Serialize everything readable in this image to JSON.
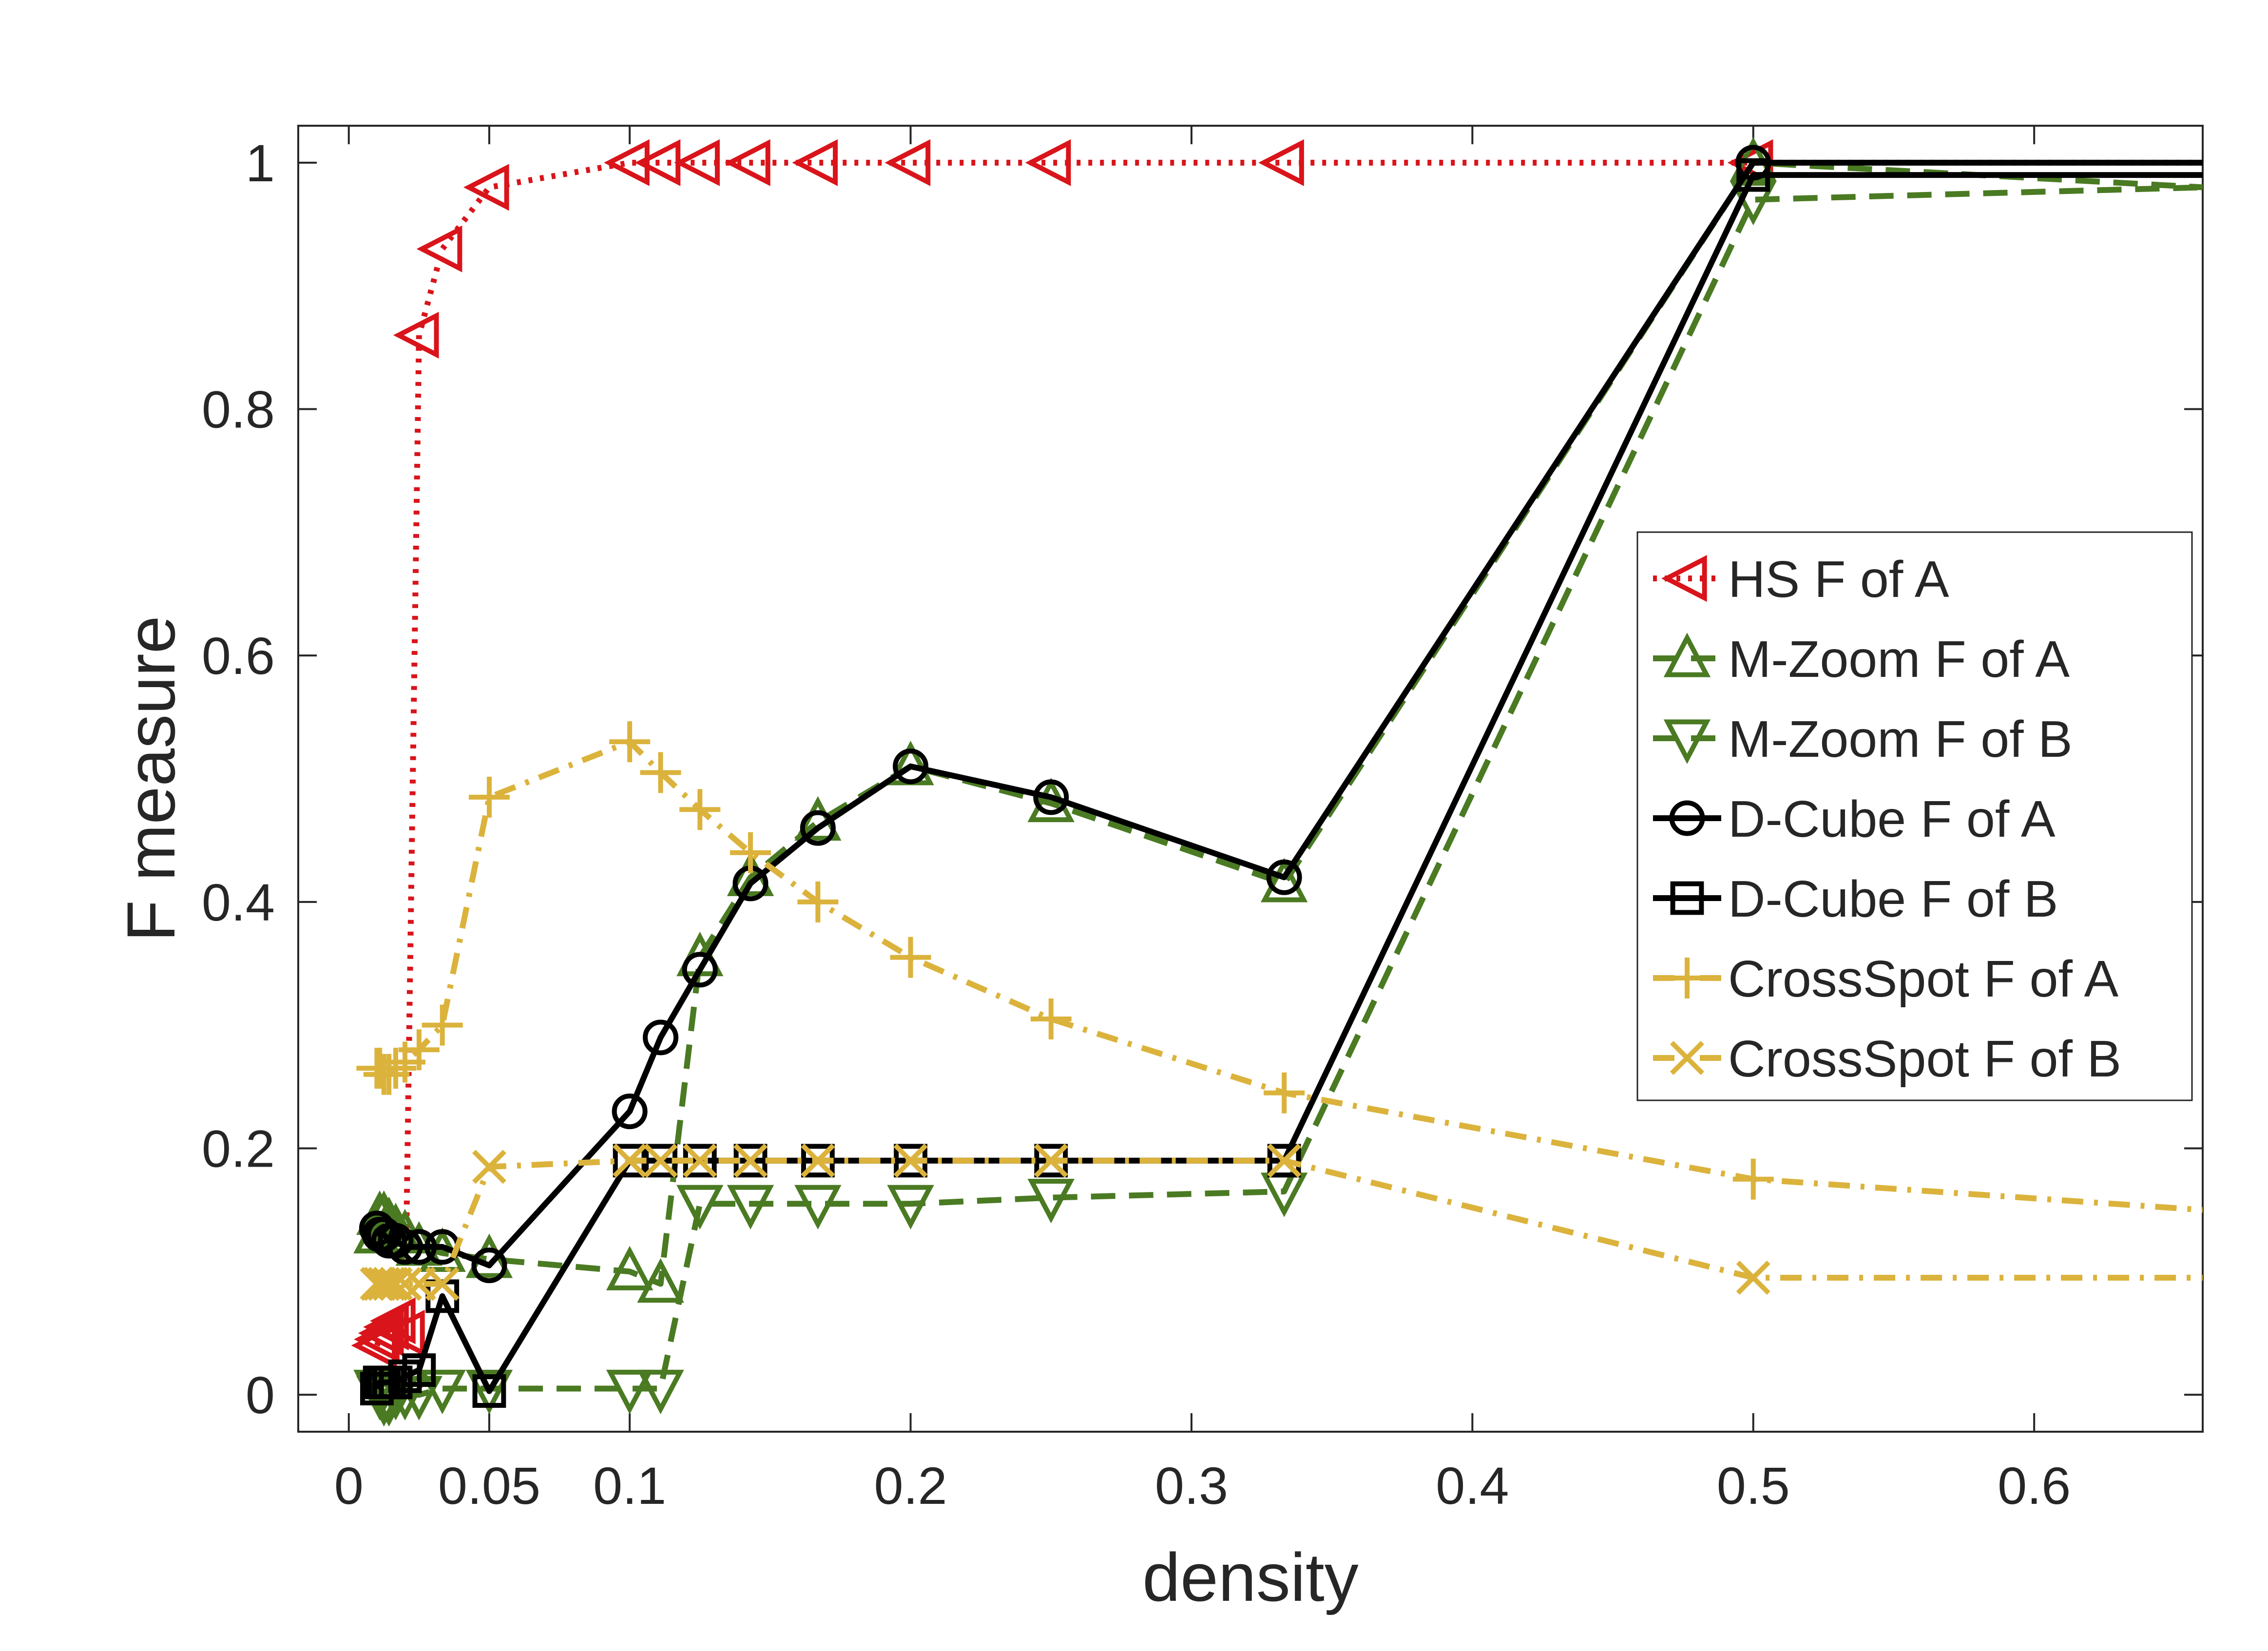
{
  "chart_data": {
    "type": "line",
    "title": "",
    "xlabel": "density",
    "ylabel": "F measure",
    "xlim": [
      -0.018,
      0.66
    ],
    "ylim": [
      -0.03,
      1.03
    ],
    "xticks": [
      0,
      0.05,
      0.1,
      0.2,
      0.3,
      0.4,
      0.5,
      0.6
    ],
    "xtick_labels": [
      "0",
      "0.05",
      "0.1",
      "0.2",
      "0.3",
      "0.4",
      "0.5",
      "0.6"
    ],
    "yticks": [
      0,
      0.2,
      0.4,
      0.6,
      0.8,
      1
    ],
    "ytick_labels": [
      "0",
      "0.2",
      "0.4",
      "0.6",
      "0.8",
      "1"
    ],
    "grid": false,
    "legend_position": "right",
    "series": [
      {
        "name": "HS F of A",
        "color": "#d9141a",
        "dash": "dotted",
        "marker": "triangle-left",
        "x": [
          0.01,
          0.011,
          0.0125,
          0.0143,
          0.0167,
          0.02,
          0.025,
          0.0333,
          0.05,
          0.1,
          0.111,
          0.125,
          0.143,
          0.167,
          0.2,
          0.25,
          0.333,
          0.5,
          0.66
        ],
        "y": [
          0.04,
          0.045,
          0.05,
          0.055,
          0.06,
          0.05,
          0.86,
          0.93,
          0.98,
          1,
          1,
          1,
          1,
          1,
          1,
          1,
          1,
          1,
          1
        ]
      },
      {
        "name": "M-Zoom F of A",
        "color": "#4a7a22",
        "dash": "dashed",
        "marker": "triangle-up",
        "x": [
          0.01,
          0.011,
          0.0125,
          0.0143,
          0.0167,
          0.02,
          0.025,
          0.0333,
          0.05,
          0.1,
          0.111,
          0.125,
          0.143,
          0.167,
          0.2,
          0.25,
          0.333,
          0.5,
          0.66
        ],
        "y": [
          0.13,
          0.145,
          0.145,
          0.14,
          0.135,
          0.13,
          0.12,
          0.115,
          0.11,
          0.1,
          0.09,
          0.355,
          0.42,
          0.465,
          0.51,
          0.48,
          0.415,
          1.0,
          0.98
        ]
      },
      {
        "name": "M-Zoom F of B",
        "color": "#4a7a22",
        "dash": "dashed",
        "marker": "triangle-down",
        "x": [
          0.01,
          0.011,
          0.0125,
          0.0143,
          0.0167,
          0.02,
          0.025,
          0.0333,
          0.05,
          0.1,
          0.111,
          0.125,
          0.143,
          0.167,
          0.2,
          0.25,
          0.333,
          0.5,
          0.66
        ],
        "y": [
          0.005,
          0.0,
          -0.005,
          -0.005,
          0.0,
          0.0,
          0.0,
          0.005,
          0.005,
          0.005,
          0.005,
          0.155,
          0.155,
          0.155,
          0.155,
          0.16,
          0.165,
          0.97,
          0.98
        ]
      },
      {
        "name": "D-Cube F of A",
        "color": "#000000",
        "dash": "solid",
        "marker": "circle",
        "x": [
          0.01,
          0.011,
          0.0125,
          0.0143,
          0.0167,
          0.02,
          0.025,
          0.0333,
          0.05,
          0.1,
          0.111,
          0.125,
          0.143,
          0.167,
          0.2,
          0.25,
          0.333,
          0.5,
          0.66
        ],
        "y": [
          0.135,
          0.13,
          0.13,
          0.125,
          0.125,
          0.12,
          0.12,
          0.12,
          0.105,
          0.23,
          0.29,
          0.345,
          0.415,
          0.46,
          0.51,
          0.485,
          0.42,
          1.0,
          1.0
        ]
      },
      {
        "name": "D-Cube F of B",
        "color": "#000000",
        "dash": "solid",
        "marker": "square",
        "x": [
          0.01,
          0.011,
          0.0125,
          0.0143,
          0.0167,
          0.02,
          0.025,
          0.0333,
          0.05,
          0.1,
          0.111,
          0.125,
          0.143,
          0.167,
          0.2,
          0.25,
          0.333,
          0.5,
          0.66
        ],
        "y": [
          0.005,
          0.01,
          0.01,
          0.01,
          0.01,
          0.015,
          0.02,
          0.08,
          0.003,
          0.19,
          0.19,
          0.19,
          0.19,
          0.19,
          0.19,
          0.19,
          0.19,
          0.99,
          0.99
        ]
      },
      {
        "name": "CrossSpot F of A",
        "color": "#dbb33c",
        "dash": "dashdot",
        "marker": "plus",
        "x": [
          0.01,
          0.011,
          0.0125,
          0.0143,
          0.0167,
          0.02,
          0.025,
          0.0333,
          0.05,
          0.1,
          0.111,
          0.125,
          0.143,
          0.167,
          0.2,
          0.25,
          0.333,
          0.5,
          0.66
        ],
        "y": [
          0.265,
          0.265,
          0.26,
          0.26,
          0.265,
          0.27,
          0.28,
          0.3,
          0.485,
          0.53,
          0.505,
          0.475,
          0.44,
          0.4,
          0.355,
          0.305,
          0.245,
          0.175,
          0.15
        ]
      },
      {
        "name": "CrossSpot F of B",
        "color": "#dbb33c",
        "dash": "dashdot",
        "marker": "x",
        "x": [
          0.01,
          0.011,
          0.0125,
          0.0143,
          0.0167,
          0.02,
          0.025,
          0.0333,
          0.05,
          0.1,
          0.111,
          0.125,
          0.143,
          0.167,
          0.2,
          0.25,
          0.333,
          0.5,
          0.66
        ],
        "y": [
          0.09,
          0.09,
          0.09,
          0.09,
          0.09,
          0.09,
          0.09,
          0.09,
          0.185,
          0.19,
          0.19,
          0.19,
          0.19,
          0.19,
          0.19,
          0.19,
          0.19,
          0.095,
          0.095
        ]
      }
    ]
  }
}
